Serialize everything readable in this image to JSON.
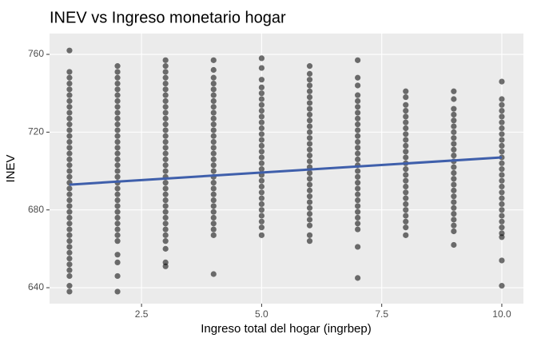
{
  "chart_data": {
    "type": "scatter",
    "title": "INEV vs Ingreso monetario hogar",
    "xlabel": "Ingreso total del hogar (ingrbep)",
    "ylabel": "INEV",
    "color": "#000000",
    "x": [
      1,
      1,
      1,
      1,
      1,
      1,
      1,
      1,
      1,
      1,
      1,
      1,
      1,
      1,
      1,
      1,
      1,
      1,
      1,
      1,
      1,
      1,
      1,
      1,
      1,
      1,
      1,
      1,
      1,
      1,
      1,
      1,
      1,
      1,
      1,
      1,
      1,
      1,
      1,
      2,
      2,
      2,
      2,
      2,
      2,
      2,
      2,
      2,
      2,
      2,
      2,
      2,
      2,
      2,
      2,
      2,
      2,
      2,
      2,
      2,
      2,
      2,
      2,
      2,
      2,
      2,
      2,
      2,
      2,
      2,
      2,
      2,
      2,
      2,
      3,
      3,
      3,
      3,
      3,
      3,
      3,
      3,
      3,
      3,
      3,
      3,
      3,
      3,
      3,
      3,
      3,
      3,
      3,
      3,
      3,
      3,
      3,
      3,
      3,
      3,
      3,
      3,
      3,
      3,
      3,
      3,
      3,
      3,
      3,
      4,
      4,
      4,
      4,
      4,
      4,
      4,
      4,
      4,
      4,
      4,
      4,
      4,
      4,
      4,
      4,
      4,
      4,
      4,
      4,
      4,
      4,
      4,
      4,
      4,
      4,
      4,
      4,
      4,
      4,
      4,
      5,
      5,
      5,
      5,
      5,
      5,
      5,
      5,
      5,
      5,
      5,
      5,
      5,
      5,
      5,
      5,
      5,
      5,
      5,
      5,
      5,
      5,
      5,
      5,
      5,
      5,
      5,
      5,
      5,
      6,
      6,
      6,
      6,
      6,
      6,
      6,
      6,
      6,
      6,
      6,
      6,
      6,
      6,
      6,
      6,
      6,
      6,
      6,
      6,
      6,
      6,
      6,
      6,
      6,
      6,
      6,
      6,
      6,
      6,
      7,
      7,
      7,
      7,
      7,
      7,
      7,
      7,
      7,
      7,
      7,
      7,
      7,
      7,
      7,
      7,
      7,
      7,
      7,
      7,
      7,
      7,
      7,
      7,
      7,
      7,
      7,
      7,
      7,
      8,
      8,
      8,
      8,
      8,
      8,
      8,
      8,
      8,
      8,
      8,
      8,
      8,
      8,
      8,
      8,
      8,
      8,
      8,
      8,
      8,
      8,
      8,
      8,
      8,
      9,
      9,
      9,
      9,
      9,
      9,
      9,
      9,
      9,
      9,
      9,
      9,
      9,
      9,
      9,
      9,
      9,
      9,
      9,
      9,
      9,
      9,
      9,
      9,
      9,
      10,
      10,
      10,
      10,
      10,
      10,
      10,
      10,
      10,
      10,
      10,
      10,
      10,
      10,
      10,
      10,
      10,
      10,
      10,
      10,
      10,
      10,
      10,
      10,
      10,
      10,
      10,
      10
    ],
    "values": [
      762,
      751,
      748,
      745,
      742,
      739,
      736,
      733,
      730,
      727,
      724,
      721,
      718,
      715,
      712,
      709,
      706,
      703,
      700,
      697,
      694,
      691,
      688,
      685,
      682,
      679,
      676,
      673,
      670,
      667,
      664,
      661,
      658,
      655,
      652,
      649,
      646,
      641,
      638,
      754,
      751,
      748,
      745,
      742,
      739,
      736,
      733,
      730,
      727,
      724,
      721,
      718,
      715,
      712,
      709,
      706,
      703,
      700,
      697,
      694,
      691,
      688,
      685,
      682,
      679,
      676,
      673,
      670,
      667,
      664,
      657,
      653,
      646,
      638,
      757,
      754,
      751,
      748,
      745,
      742,
      739,
      736,
      733,
      730,
      727,
      724,
      721,
      718,
      715,
      712,
      709,
      706,
      703,
      700,
      697,
      694,
      691,
      688,
      685,
      682,
      679,
      676,
      673,
      670,
      667,
      664,
      660,
      653,
      651,
      757,
      752,
      748,
      745,
      742,
      739,
      736,
      733,
      730,
      727,
      724,
      721,
      718,
      715,
      712,
      709,
      706,
      703,
      700,
      697,
      694,
      691,
      688,
      685,
      682,
      679,
      676,
      673,
      670,
      667,
      647,
      758,
      753,
      747,
      743,
      740,
      737,
      734,
      731,
      728,
      725,
      722,
      719,
      716,
      713,
      710,
      707,
      704,
      701,
      698,
      695,
      692,
      689,
      686,
      683,
      680,
      677,
      674,
      671,
      667,
      754,
      750,
      747,
      744,
      741,
      738,
      735,
      732,
      729,
      726,
      723,
      720,
      717,
      714,
      711,
      708,
      705,
      702,
      699,
      696,
      693,
      690,
      687,
      684,
      681,
      678,
      675,
      672,
      667,
      664,
      757,
      748,
      744,
      739,
      736,
      733,
      730,
      727,
      724,
      721,
      718,
      715,
      712,
      709,
      706,
      703,
      700,
      697,
      694,
      691,
      688,
      685,
      682,
      679,
      676,
      673,
      670,
      661,
      645,
      741,
      738,
      734,
      731,
      728,
      725,
      722,
      719,
      716,
      713,
      710,
      707,
      704,
      701,
      698,
      695,
      692,
      689,
      686,
      683,
      680,
      677,
      674,
      671,
      667,
      741,
      737,
      732,
      729,
      726,
      723,
      720,
      717,
      714,
      711,
      708,
      705,
      702,
      699,
      696,
      693,
      690,
      687,
      684,
      681,
      678,
      675,
      672,
      669,
      662,
      746,
      737,
      734,
      731,
      728,
      725,
      722,
      719,
      716,
      713,
      710,
      707,
      704,
      701,
      698,
      695,
      692,
      689,
      686,
      683,
      680,
      677,
      674,
      671,
      668,
      666,
      654,
      641
    ],
    "fit": {
      "x": [
        1,
        10
      ],
      "values": [
        693,
        707
      ],
      "color": "#3f5fab"
    },
    "xlim": [
      0.585,
      10.45
    ],
    "ylim": [
      631.8,
      770.7
    ],
    "xticks": [
      2.5,
      {
        "value": 5,
        "label": "5.0"
      },
      7.5,
      {
        "value": 10,
        "label": "10.0"
      }
    ],
    "yticks": [
      640,
      680,
      720,
      760
    ],
    "grid": true
  }
}
